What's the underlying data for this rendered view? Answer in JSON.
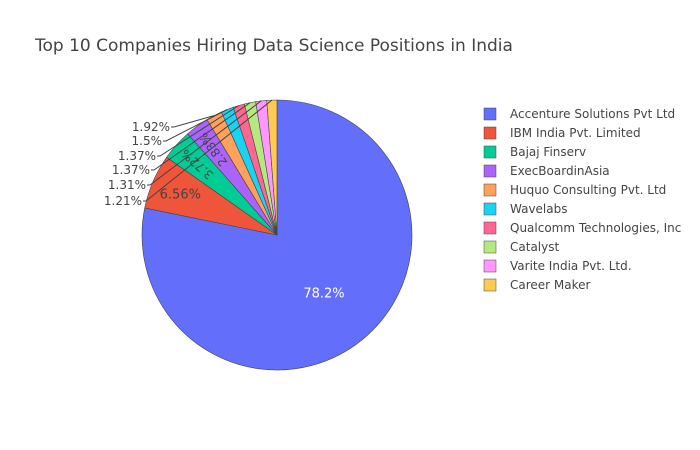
{
  "chart_data": {
    "type": "pie",
    "title": "Top 10 Companies Hiring Data Science Positions in India",
    "slices": [
      {
        "label": "Accenture Solutions Pvt Ltd",
        "value": 78.2,
        "display": "78.2%",
        "color": "#636efa"
      },
      {
        "label": "IBM India Pvt. Limited",
        "value": 6.56,
        "display": "6.56%",
        "color": "#EF553B"
      },
      {
        "label": "Bajaj Finserv",
        "value": 3.72,
        "display": "3.72%",
        "color": "#00cc96"
      },
      {
        "label": "ExecBoardinAsia",
        "value": 2.83,
        "display": "2.83%",
        "color": "#ab63fa"
      },
      {
        "label": "Huquo Consulting Pvt. Ltd",
        "value": 1.92,
        "display": "1.92%",
        "color": "#FFA15A"
      },
      {
        "label": "Wavelabs",
        "value": 1.5,
        "display": "1.5%",
        "color": "#19d3f3"
      },
      {
        "label": "Qualcomm Technologies, Inc",
        "value": 1.37,
        "display": "1.37%",
        "color": "#FF6692"
      },
      {
        "label": "Catalyst",
        "value": 1.37,
        "display": "1.37%",
        "color": "#B6E880"
      },
      {
        "label": "Varite India Pvt. Ltd.",
        "value": 1.31,
        "display": "1.31%",
        "color": "#FF97FF"
      },
      {
        "label": "Career Maker",
        "value": 1.21,
        "display": "1.21%",
        "color": "#FECB52"
      }
    ],
    "legend_position": "right",
    "direction": "clockwise",
    "start_angle": "12 o'clock"
  }
}
